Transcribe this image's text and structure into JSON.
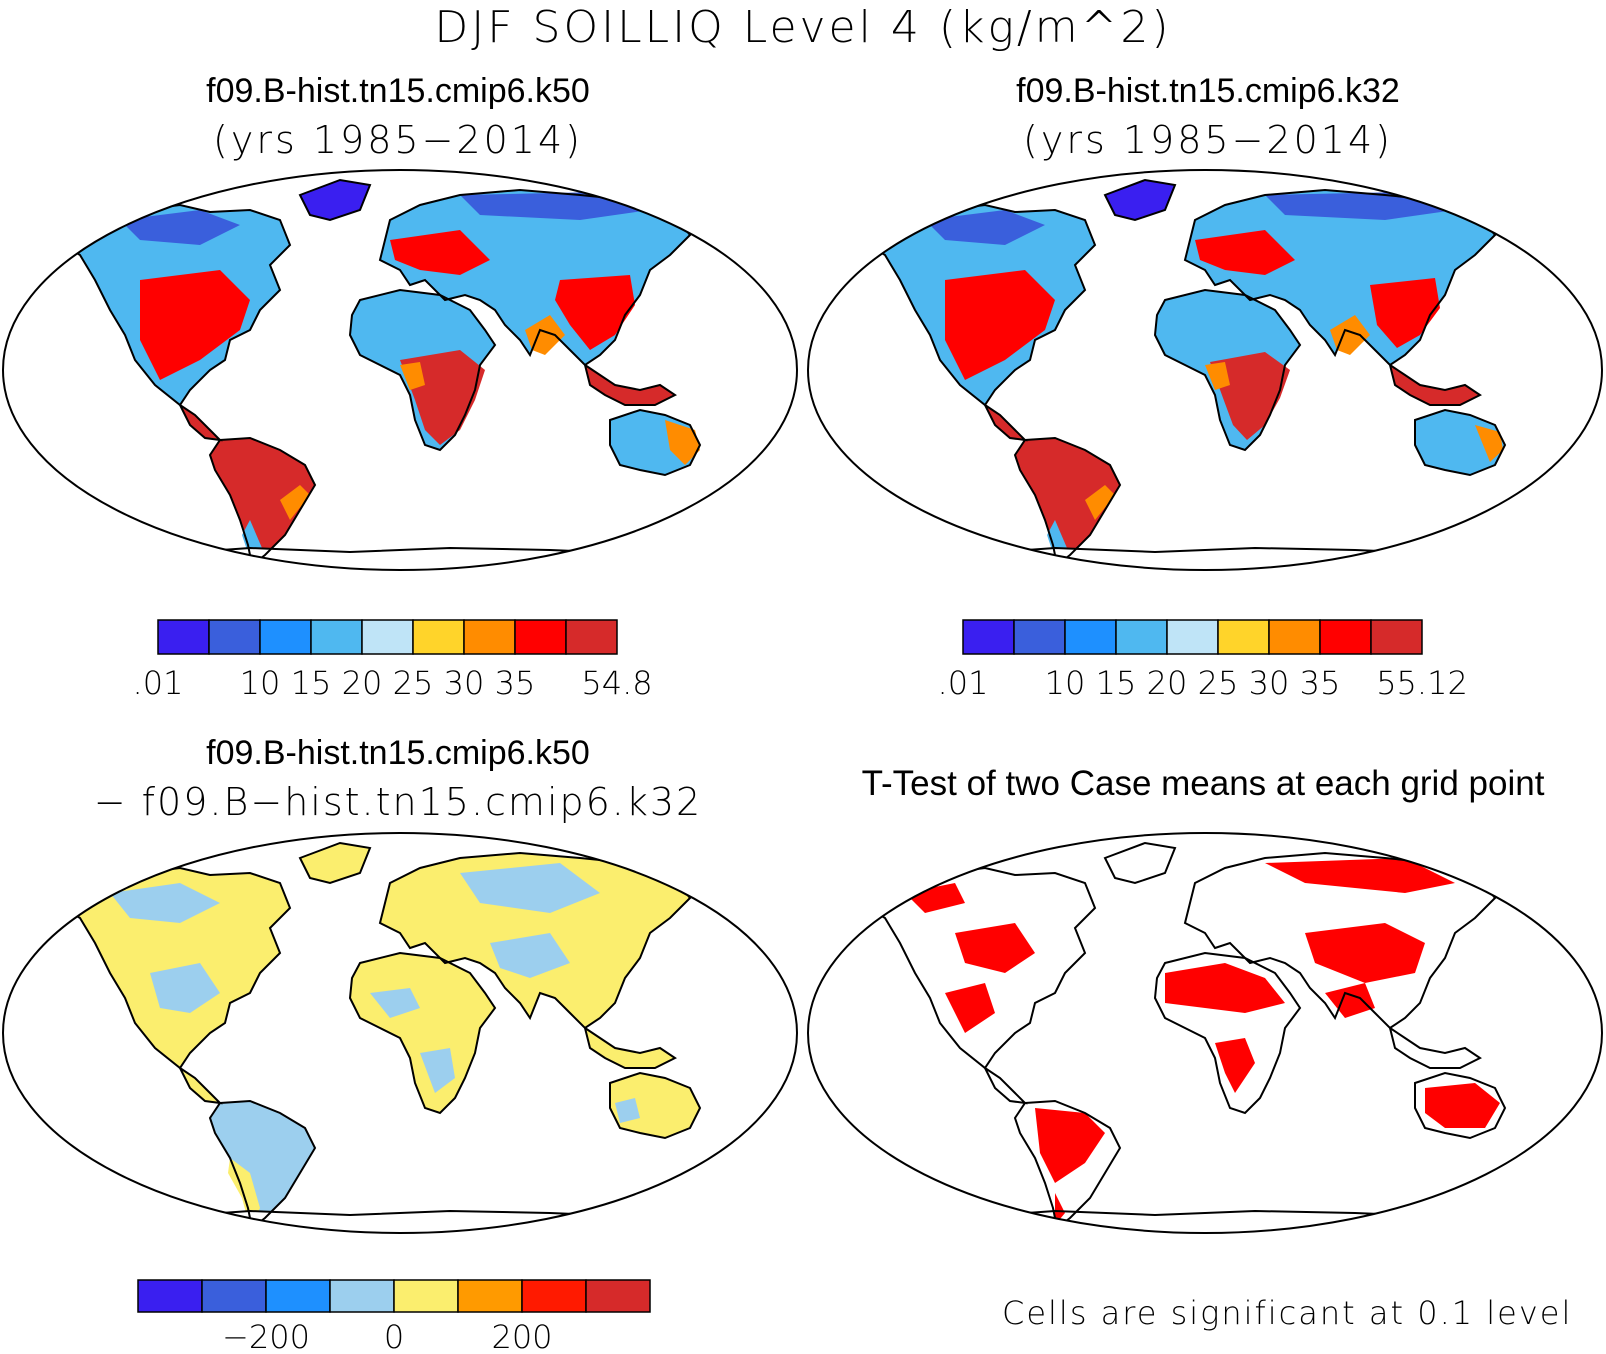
{
  "figure": {
    "title": "DJF SOILLIQ Level 4 (kg/m^2)"
  },
  "panels": [
    {
      "id": "case1",
      "title": "f09.B-hist.tn15.cmip6.k50",
      "subtitle": "(yrs 1985−2014)",
      "field": "mean"
    },
    {
      "id": "case2",
      "title": "f09.B-hist.tn15.cmip6.k32",
      "subtitle": "(yrs 1985−2014)",
      "field": "mean"
    },
    {
      "id": "diff",
      "title": "f09.B-hist.tn15.cmip6.k50",
      "subtitle": "− f09.B−hist.tn15.cmip6.k32",
      "field": "difference"
    },
    {
      "id": "ttest",
      "title": "T-Test of two Case means at each grid point",
      "note": "Cells are significant at 0.1 level",
      "significance_color": "#ff0000"
    }
  ],
  "colorbars": {
    "case1": {
      "colors": [
        "#3a1ff0",
        "#3a5fdc",
        "#1e90ff",
        "#4fb8f0",
        "#bfe4f7",
        "#ffd42a",
        "#ff8c00",
        "#ff0000",
        "#d62a2a"
      ],
      "labels": [
        ".01",
        "10",
        "15",
        "20",
        "25",
        "30",
        "35",
        "54.8"
      ],
      "label_boundaries": [
        0,
        2,
        3,
        4,
        5,
        6,
        7,
        9
      ]
    },
    "case2": {
      "colors": [
        "#3a1ff0",
        "#3a5fdc",
        "#1e90ff",
        "#4fb8f0",
        "#bfe4f7",
        "#ffd42a",
        "#ff8c00",
        "#ff0000",
        "#d62a2a"
      ],
      "labels": [
        ".01",
        "10",
        "15",
        "20",
        "25",
        "30",
        "35",
        "55.12"
      ],
      "label_boundaries": [
        0,
        2,
        3,
        4,
        5,
        6,
        7,
        9
      ]
    },
    "diff": {
      "colors": [
        "#3a1ff0",
        "#3a5fdc",
        "#1e90ff",
        "#9ccfee",
        "#fbee6e",
        "#ff9a00",
        "#ff1a00",
        "#d62a2a"
      ],
      "labels": [
        "−200",
        "0",
        "200"
      ],
      "label_boundaries": [
        2,
        4,
        6
      ]
    }
  },
  "map_colors": {
    "land_outline": "#000000",
    "ocean": "#ffffff"
  }
}
